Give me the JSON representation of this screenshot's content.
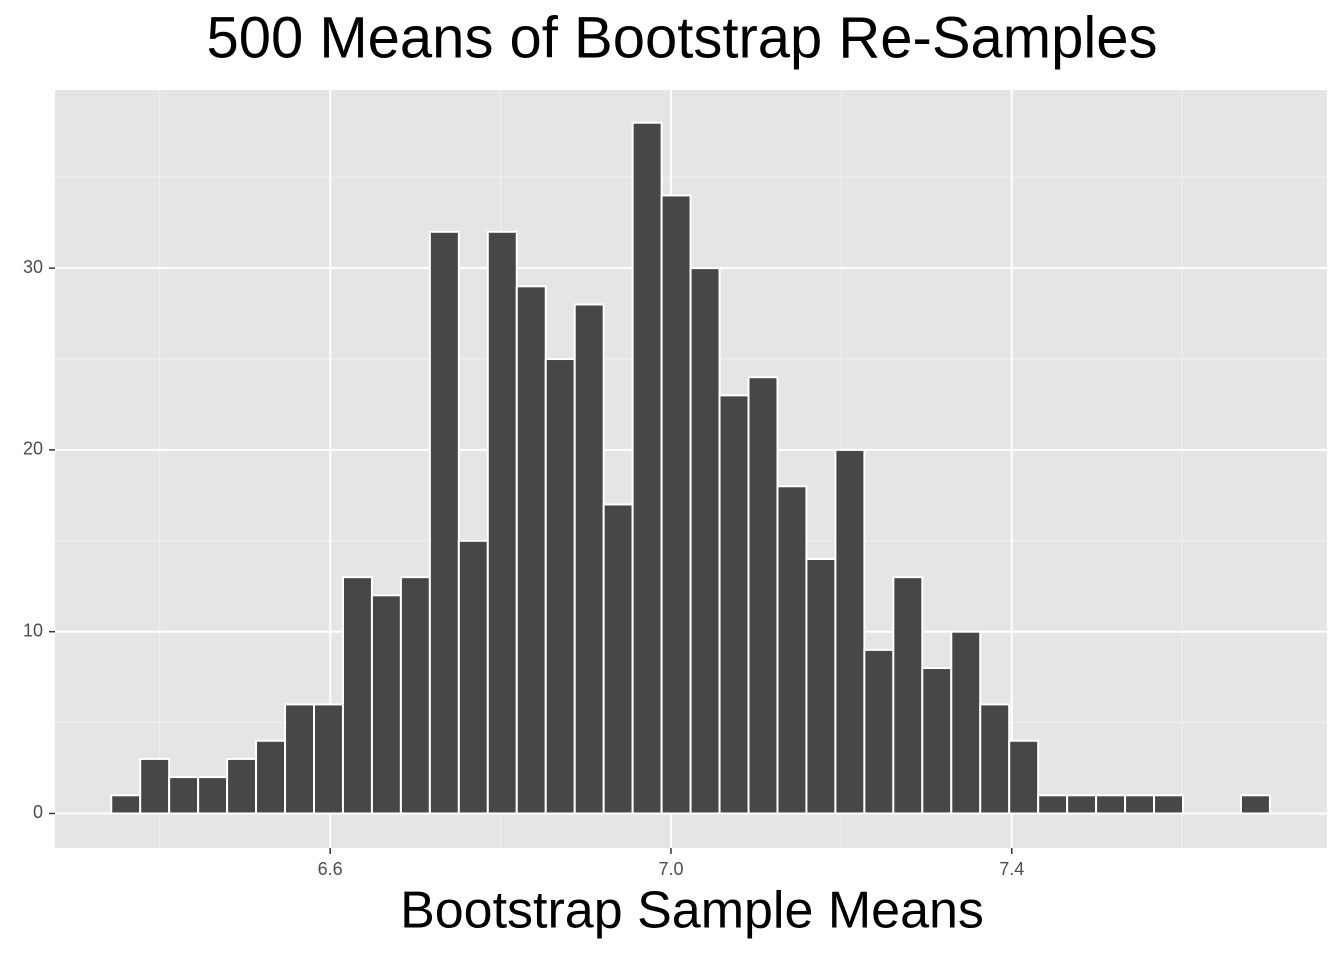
{
  "chart_data": {
    "type": "histogram",
    "title": "500 Means of Bootstrap Re-Samples",
    "x_label": "Bootstrap Sample Means",
    "bins": [
      6.343,
      6.377,
      6.411,
      6.445,
      6.479,
      6.513,
      6.547,
      6.581,
      6.615,
      6.649,
      6.683,
      6.717,
      6.751,
      6.785,
      6.819,
      6.853,
      6.887,
      6.921,
      6.955,
      6.989,
      7.023,
      7.057,
      7.091,
      7.125,
      7.159,
      7.193,
      7.227,
      7.261,
      7.295,
      7.329,
      7.363,
      7.397,
      7.431,
      7.465,
      7.499,
      7.533,
      7.567,
      7.601,
      7.635,
      7.669,
      7.703
    ],
    "values": [
      1,
      3,
      2,
      2,
      3,
      4,
      6,
      6,
      13,
      12,
      13,
      32,
      15,
      32,
      29,
      25,
      28,
      17,
      38,
      34,
      30,
      23,
      24,
      18,
      14,
      20,
      9,
      13,
      8,
      10,
      6,
      4,
      1,
      1,
      1,
      1,
      1,
      0,
      0,
      1
    ],
    "color": "#474747",
    "edge_color": "#ffffff",
    "xlim": [
      6.277,
      7.77
    ],
    "xticks": [
      6.6,
      {
        "value": 7.0,
        "label": "7.0"
      },
      7.4
    ],
    "x_minor_grid": [
      6.4,
      6.8,
      7.2,
      7.6
    ],
    "ylim": [
      -1.9,
      39.8
    ],
    "yticks": [
      0,
      10,
      20,
      30
    ],
    "y_minor_grid": [
      5,
      15,
      25,
      35
    ],
    "grid": true
  }
}
